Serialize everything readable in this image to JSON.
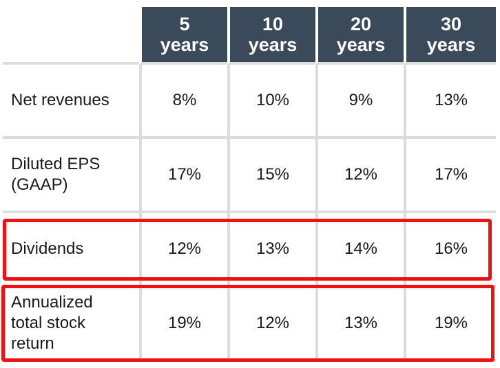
{
  "table": {
    "headers": [
      {
        "line1": "5",
        "line2": "years"
      },
      {
        "line1": "10",
        "line2": "years"
      },
      {
        "line1": "20",
        "line2": "years"
      },
      {
        "line1": "30",
        "line2": "years"
      }
    ],
    "rows": [
      {
        "label": "Net revenues",
        "values": [
          "8%",
          "10%",
          "9%",
          "13%"
        ]
      },
      {
        "label_lines": [
          "Diluted EPS",
          "(GAAP)"
        ],
        "values": [
          "17%",
          "15%",
          "12%",
          "17%"
        ]
      },
      {
        "label": "Dividends",
        "values": [
          "12%",
          "13%",
          "14%",
          "16%"
        ]
      },
      {
        "label_lines": [
          "Annualized",
          "total stock",
          "return"
        ],
        "values": [
          "19%",
          "12%",
          "13%",
          "19%"
        ]
      }
    ]
  },
  "colors": {
    "header_bg": "#3a4a5a",
    "header_text": "#ffffff",
    "grid": "#dcdcdc",
    "highlight": "#ee1111"
  }
}
